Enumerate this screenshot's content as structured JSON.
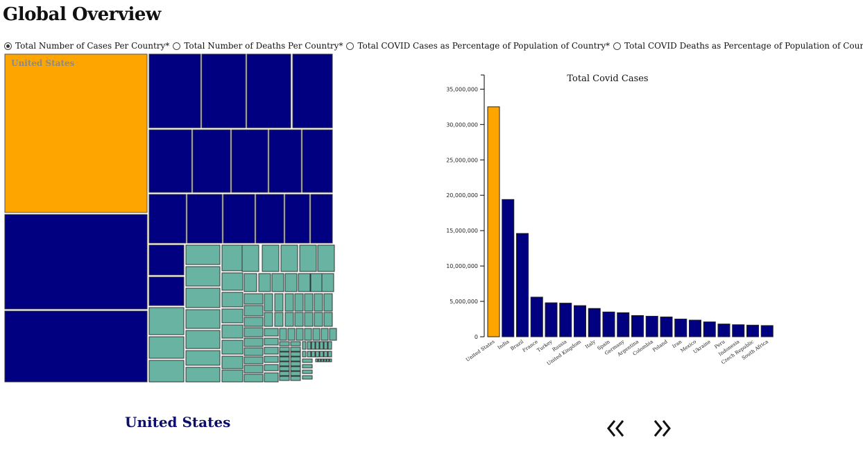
{
  "page": {
    "title": "Global Overview"
  },
  "metrics": [
    {
      "label": "Total Number of Cases Per Country*",
      "checked": true
    },
    {
      "label": "Total Number of Deaths Per Country*",
      "checked": false
    },
    {
      "label": "Total COVID Cases as Percentage of Population of Country*",
      "checked": false
    },
    {
      "label": "Total COVID Deaths as Percentage of Population of Country*",
      "checked": false
    }
  ],
  "selected_country": "United States",
  "colors": {
    "highlight": "#ffa500",
    "primary": "#000080",
    "secondary": "#69b3a2"
  },
  "icons": {
    "prev": "double-chevron-left-icon",
    "next": "double-chevron-right-icon"
  },
  "chart_data": [
    {
      "type": "treemap",
      "title": "",
      "highlighted_label": "United States",
      "note": "Treemap of total cases per country; United States highlighted in orange, top countries navy, remaining countries teal."
    },
    {
      "type": "bar",
      "title": "Total Covid Cases",
      "xlabel": "",
      "ylabel": "",
      "ylim": [
        0,
        37000000
      ],
      "yticks": [
        0,
        5000000,
        10000000,
        15000000,
        20000000,
        25000000,
        30000000,
        35000000
      ],
      "ytick_labels": [
        "0",
        "5,000,000",
        "10,000,000",
        "15,000,000",
        "20,000,000",
        "25,000,000",
        "30,000,000",
        "35,000,000"
      ],
      "highlight": "United States",
      "categories": [
        "United States",
        "India",
        "Brazil",
        "France",
        "Turkey",
        "Russia",
        "United Kingdom",
        "Italy",
        "Spain",
        "Germany",
        "Argentina",
        "Colombia",
        "Poland",
        "Iran",
        "Mexico",
        "Ukraine",
        "Peru",
        "Indonesia",
        "Czech Republic",
        "South Africa"
      ],
      "values": [
        32500000,
        19400000,
        14600000,
        5600000,
        4800000,
        4750000,
        4400000,
        4000000,
        3500000,
        3400000,
        3000000,
        2900000,
        2800000,
        2500000,
        2350000,
        2100000,
        1800000,
        1700000,
        1640000,
        1580000
      ]
    }
  ]
}
